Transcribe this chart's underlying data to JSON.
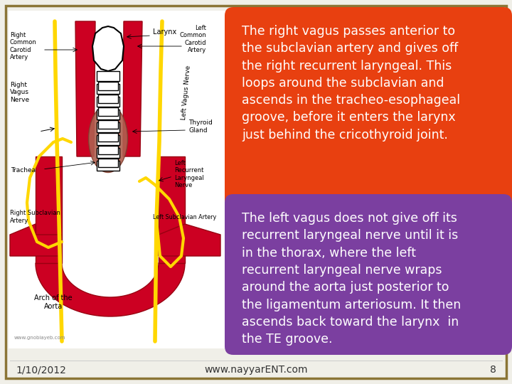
{
  "background_color": "#F0EFE8",
  "border_color": "#8B7536",
  "slide_bg": "#F0EFE8",
  "box1_color": "#E84010",
  "box2_color": "#7B3FA0",
  "box1_text": "The right vagus passes anterior to\nthe subclavian artery and gives off\nthe right recurrent laryngeal. This\nloops around the subclavian and\nascends in the tracheo-esophageal\ngroove, before it enters the larynx\njust behind the cricothyroid joint.",
  "box2_text": "The left vagus does not give off its\nrecurrent laryngeal nerve until it is\nin the thorax, where the left\nrecurrent laryngeal nerve wraps\naround the aorta just posterior to\nthe ligamentum arteriosum. It then\nascends back toward the larynx  in\nthe TE groove.",
  "text_color": "#FFFFFF",
  "footer_date": "1/10/2012",
  "footer_url": "www.nayyarENT.com",
  "footer_page": "8",
  "footer_color": "#333333",
  "font_size_box": 12.5,
  "font_size_footer": 10,
  "artery_color": "#CC0022",
  "artery_edge": "#990011",
  "nerve_color": "#FFD700",
  "trachea_color": "#C07060"
}
